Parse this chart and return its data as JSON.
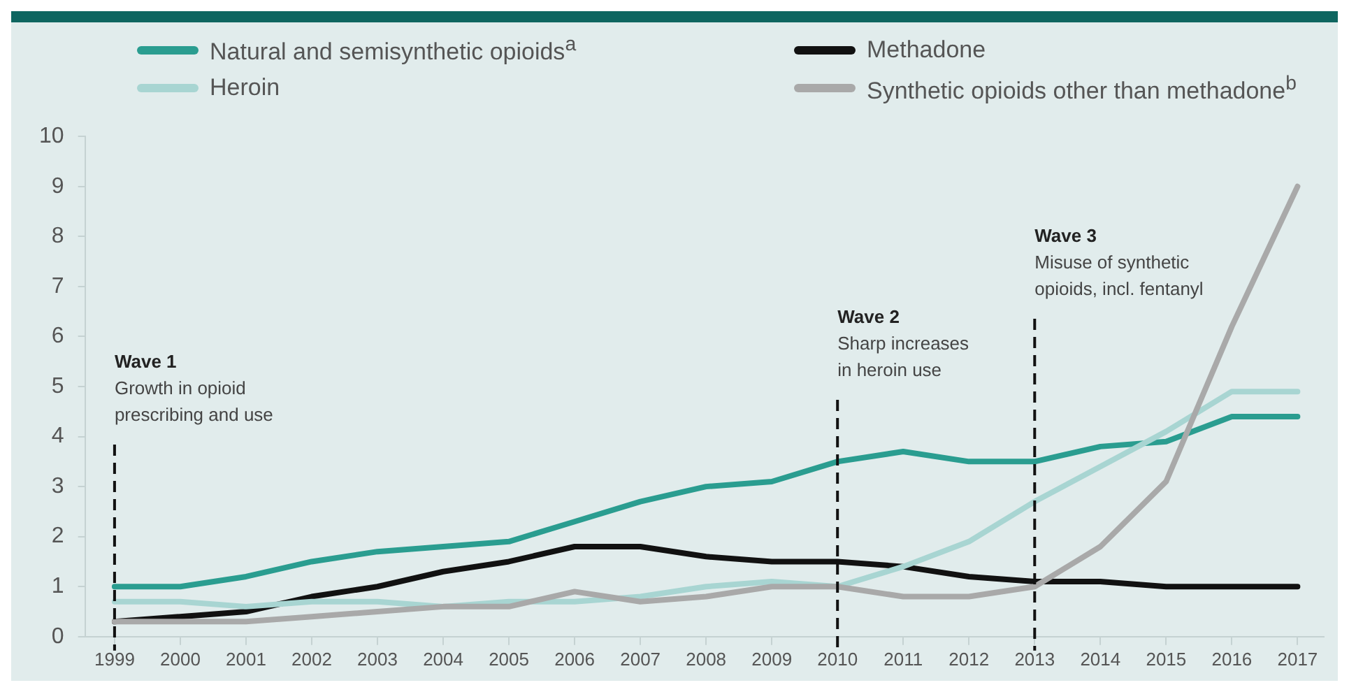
{
  "chart_data": {
    "type": "line",
    "x": [
      1999,
      2000,
      2001,
      2002,
      2003,
      2004,
      2005,
      2006,
      2007,
      2008,
      2009,
      2010,
      2011,
      2012,
      2013,
      2014,
      2015,
      2016,
      2017
    ],
    "series": [
      {
        "name": "Natural and semisynthetic opioids$^{a}$",
        "color": "#2a9d90",
        "values": [
          1.0,
          1.0,
          1.2,
          1.5,
          1.7,
          1.8,
          1.9,
          2.3,
          2.7,
          3.0,
          3.1,
          3.5,
          3.7,
          3.5,
          3.5,
          3.8,
          3.9,
          4.4,
          4.4
        ]
      },
      {
        "name": "Methadone",
        "color": "#111111",
        "values": [
          0.3,
          0.4,
          0.5,
          0.8,
          1.0,
          1.3,
          1.5,
          1.8,
          1.8,
          1.6,
          1.5,
          1.5,
          1.4,
          1.2,
          1.1,
          1.1,
          1.0,
          1.0,
          1.0
        ]
      },
      {
        "name": "Heroin",
        "color": "#a8d5d2",
        "values": [
          0.7,
          0.7,
          0.6,
          0.7,
          0.7,
          0.6,
          0.7,
          0.7,
          0.8,
          1.0,
          1.1,
          1.0,
          1.4,
          1.9,
          2.7,
          3.4,
          4.1,
          4.9,
          4.9
        ]
      },
      {
        "name": "Synthetic opioids other than methadone$^{b}$",
        "color": "#a9a9a9",
        "values": [
          0.3,
          0.3,
          0.3,
          0.4,
          0.5,
          0.6,
          0.6,
          0.9,
          0.7,
          0.8,
          1.0,
          1.0,
          0.8,
          0.8,
          1.0,
          1.8,
          3.1,
          6.2,
          9.0
        ]
      }
    ],
    "xlim": [
      1998.55,
      2017.4
    ],
    "xticks": [
      1999,
      2000,
      2001,
      2002,
      2003,
      2004,
      2005,
      2006,
      2007,
      2008,
      2009,
      2010,
      2011,
      2012,
      2013,
      2014,
      2015,
      2016,
      2017
    ],
    "ylim": [
      0,
      10
    ],
    "yticks": [
      0,
      1,
      2,
      3,
      4,
      5,
      6,
      7,
      8,
      9,
      10
    ],
    "ref_lines": [
      {
        "axis": "x",
        "value": 1999,
        "label": "Wave 1\nGrowth in opioid\nprescribing and use",
        "line_style": "dashed",
        "color": "#111111"
      },
      {
        "axis": "x",
        "value": 2010,
        "label": "Wave 2\nSharp increases\nin heroin use",
        "line_style": "dashed",
        "color": "#111111"
      },
      {
        "axis": "x",
        "value": 2013,
        "label": "Wave 3\nMisuse of synthetic\nopioids, incl. fentanyl",
        "line_style": "dashed",
        "color": "#111111"
      }
    ],
    "grid": false,
    "legend": "top",
    "marker": "none",
    "line_style": "solid"
  }
}
